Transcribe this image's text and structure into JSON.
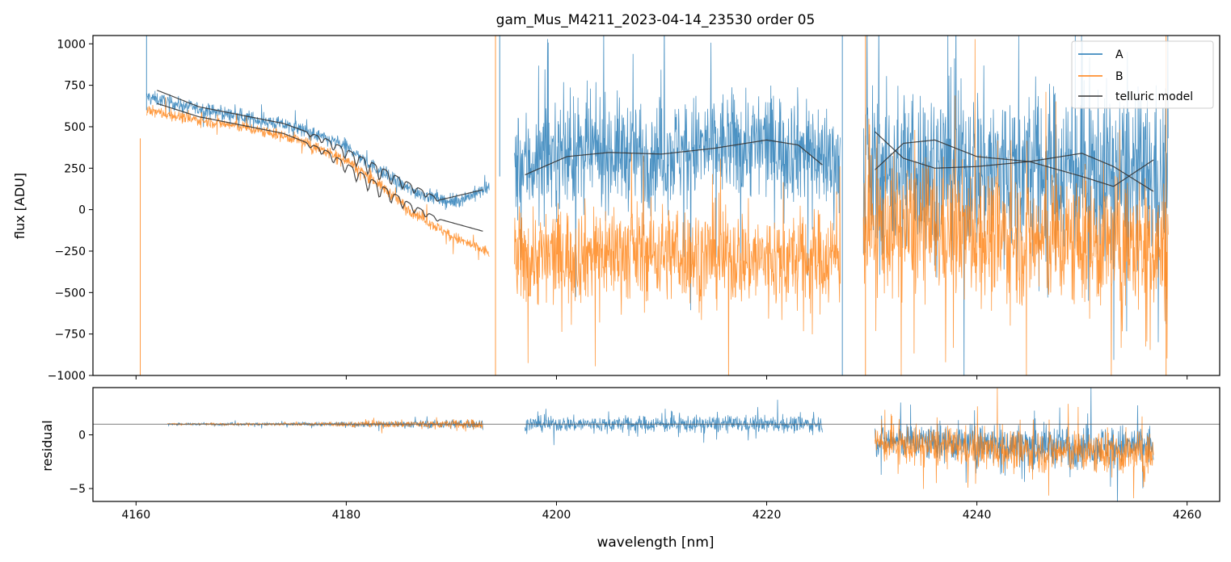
{
  "chart_data": [
    {
      "type": "line",
      "panel": "main",
      "title": "gam_Mus_M4211_2023-04-14_23530  order 05",
      "xlabel": "",
      "ylabel": "flux [ADU]",
      "xlim": [
        4155.9,
        4263.1
      ],
      "ylim": [
        -1000,
        1050
      ],
      "xticks": [
        4160,
        4180,
        4200,
        4220,
        4240,
        4260
      ],
      "yticks": [
        -1000,
        -750,
        -500,
        -250,
        0,
        250,
        500,
        750,
        1000
      ],
      "ytick_labels": [
        "−1000",
        "−750",
        "−500",
        "−250",
        "0",
        "250",
        "500",
        "750",
        "1000"
      ],
      "legend_position": "top-right",
      "legend": [
        {
          "label": "A",
          "color": "#1f77b4"
        },
        {
          "label": "B",
          "color": "#ff7f0e"
        },
        {
          "label": "telluric model",
          "color": "#333333"
        }
      ],
      "series": [
        {
          "name": "A",
          "color": "#1f77b4",
          "segments": [
            {
              "x": [
                4161.0,
                4165,
                4170,
                4175,
                4180,
                4183,
                4186,
                4190,
                4193.6
              ],
              "y": [
                680,
                620,
                560,
                500,
                380,
                240,
                120,
                40,
                130
              ],
              "noise": 55
            },
            {
              "x": [
                4196.0,
                4200,
                4205,
                4210,
                4215,
                4220,
                4224,
                4227
              ],
              "y": [
                250,
                330,
                350,
                340,
                380,
                400,
                360,
                280
              ],
              "noise": 420
            },
            {
              "x": [
                4229.2,
                4235,
                4240,
                4245,
                4250,
                4255,
                4258.2
              ],
              "y": [
                220,
                260,
                250,
                250,
                240,
                200,
                180
              ],
              "noise": 650
            }
          ]
        },
        {
          "name": "B",
          "color": "#ff7f0e",
          "segments": [
            {
              "x": [
                4161.0,
                4165,
                4170,
                4175,
                4180,
                4183,
                4186,
                4190,
                4193.6
              ],
              "y": [
                600,
                550,
                500,
                430,
                300,
                160,
                0,
                -160,
                -260
              ],
              "noise": 45
            },
            {
              "x": [
                4196.0,
                4200,
                4205,
                4210,
                4215,
                4220,
                4224,
                4227
              ],
              "y": [
                -300,
                -280,
                -250,
                -260,
                -280,
                -300,
                -300,
                -280
              ],
              "noise": 380
            },
            {
              "x": [
                4229.2,
                4235,
                4240,
                4245,
                4250,
                4255,
                4258.2
              ],
              "y": [
                -100,
                -120,
                -150,
                -180,
                -200,
                -220,
                -240
              ],
              "noise": 520
            }
          ]
        }
      ],
      "telluric_model": [
        {
          "x": [
            4162,
            4166,
            4170,
            4174,
            4178,
            4182,
            4186,
            4189,
            4193
          ],
          "y": [
            720,
            620,
            570,
            520,
            430,
            300,
            160,
            60,
            120
          ],
          "absorption": true
        },
        {
          "x": [
            4162,
            4166,
            4170,
            4174,
            4178,
            4182,
            4186,
            4189,
            4193
          ],
          "y": [
            640,
            560,
            510,
            460,
            360,
            200,
            40,
            -60,
            -130
          ],
          "absorption": true
        },
        {
          "x": [
            4197,
            4201,
            4205,
            4210,
            4215,
            4220,
            4223,
            4225.3
          ],
          "y": [
            210,
            320,
            345,
            335,
            370,
            420,
            390,
            270
          ]
        },
        {
          "x": [
            4230.3,
            4233,
            4236,
            4240,
            4245,
            4250,
            4253,
            4256.8
          ],
          "y": [
            470,
            310,
            250,
            260,
            290,
            340,
            260,
            110
          ]
        },
        {
          "x": [
            4230.3,
            4233,
            4236,
            4240,
            4245,
            4250,
            4253,
            4256.8
          ],
          "y": [
            240,
            400,
            420,
            320,
            290,
            200,
            140,
            300
          ]
        }
      ]
    },
    {
      "type": "line",
      "panel": "residual",
      "xlabel": "wavelength [nm]",
      "ylabel": "residual",
      "xlim": [
        4155.9,
        4263.1
      ],
      "ylim": [
        -6.2,
        4.4
      ],
      "xticks": [
        4160,
        4180,
        4200,
        4220,
        4240,
        4260
      ],
      "yticks": [
        -5,
        0
      ],
      "ytick_labels": [
        "−5",
        "0"
      ],
      "reference_line": 1.0,
      "series": [
        {
          "name": "A",
          "color": "#1f77b4",
          "segments": [
            {
              "x": [
                4163,
                4175,
                4185,
                4193
              ],
              "y": [
                1.0,
                1.0,
                1.0,
                1.0
              ],
              "noise": [
                0.1,
                0.2,
                0.4,
                0.6
              ]
            },
            {
              "x": [
                4197,
                4210,
                4225.3
              ],
              "y": [
                1.0,
                1.0,
                1.0
              ],
              "noise": [
                0.9,
                1.0,
                1.0
              ]
            },
            {
              "x": [
                4230.3,
                4245,
                4256.8
              ],
              "y": [
                -0.5,
                -1.0,
                -1.0
              ],
              "noise": [
                2.0,
                2.5,
                2.5
              ]
            }
          ]
        },
        {
          "name": "B",
          "color": "#ff7f0e",
          "segments": [
            {
              "x": [
                4163,
                4175,
                4185,
                4193
              ],
              "y": [
                1.0,
                1.0,
                1.0,
                1.0
              ],
              "noise": [
                0.08,
                0.15,
                0.45,
                0.6
              ]
            },
            {
              "x": [
                4230.3,
                4245,
                4256.8
              ],
              "y": [
                -0.8,
                -1.5,
                -1.8
              ],
              "noise": [
                2.2,
                2.6,
                2.6
              ]
            }
          ]
        }
      ]
    }
  ]
}
